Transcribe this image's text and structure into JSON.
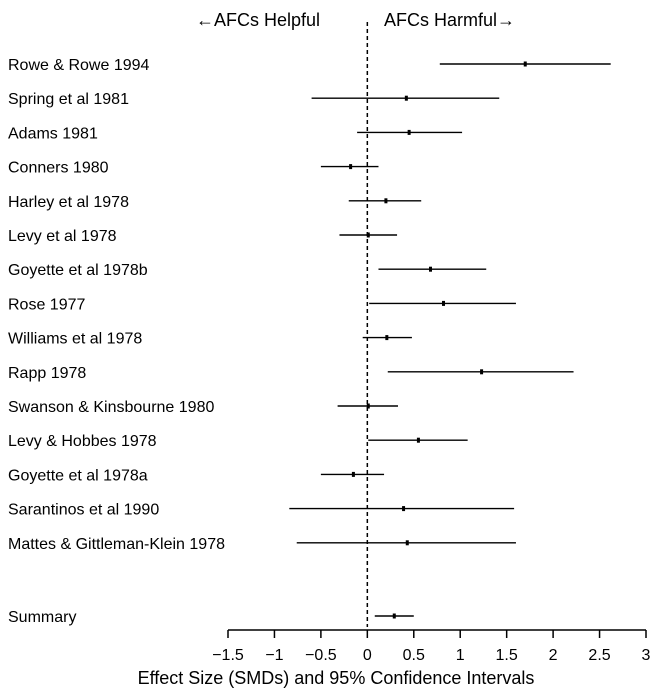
{
  "chart_data": {
    "type": "forest",
    "direction_labels": {
      "helpful": "←AFCs Helpful",
      "harmful": "AFCs Harmful→"
    },
    "xlabel": "Effect Size (SMDs) and 95% Confidence Intervals",
    "xlim": [
      -1.5,
      3
    ],
    "xticks": [
      -1.5,
      -1,
      -0.5,
      0,
      0.5,
      1,
      1.5,
      2,
      2.5,
      3
    ],
    "xtick_labels": [
      "−1.5",
      "−1",
      "−0.5",
      "0",
      "0.5",
      "1",
      "1.5",
      "2",
      "2.5",
      "3"
    ],
    "reference_line": 0,
    "studies": [
      {
        "label": "Rowe & Rowe 1994",
        "est": 1.7,
        "lo": 0.78,
        "hi": 2.62
      },
      {
        "label": "Spring et al 1981",
        "est": 0.42,
        "lo": -0.6,
        "hi": 1.42
      },
      {
        "label": "Adams 1981",
        "est": 0.45,
        "lo": -0.11,
        "hi": 1.02
      },
      {
        "label": "Conners 1980",
        "est": -0.18,
        "lo": -0.5,
        "hi": 0.12
      },
      {
        "label": "Harley et al 1978",
        "est": 0.2,
        "lo": -0.2,
        "hi": 0.58
      },
      {
        "label": "Levy et al 1978",
        "est": 0.01,
        "lo": -0.3,
        "hi": 0.32
      },
      {
        "label": "Goyette et al 1978b",
        "est": 0.68,
        "lo": 0.12,
        "hi": 1.28
      },
      {
        "label": "Rose 1977",
        "est": 0.82,
        "lo": 0.02,
        "hi": 1.6
      },
      {
        "label": "Williams et al 1978",
        "est": 0.21,
        "lo": -0.05,
        "hi": 0.48
      },
      {
        "label": "Rapp 1978",
        "est": 1.23,
        "lo": 0.22,
        "hi": 2.22
      },
      {
        "label": "Swanson & Kinsbourne 1980",
        "est": 0.01,
        "lo": -0.32,
        "hi": 0.33
      },
      {
        "label": "Levy & Hobbes 1978",
        "est": 0.55,
        "lo": 0.01,
        "hi": 1.08
      },
      {
        "label": "Goyette et al 1978a",
        "est": -0.15,
        "lo": -0.5,
        "hi": 0.18
      },
      {
        "label": "Sarantinos et al 1990",
        "est": 0.39,
        "lo": -0.84,
        "hi": 1.58
      },
      {
        "label": "Mattes & Gittleman-Klein 1978",
        "est": 0.43,
        "lo": -0.76,
        "hi": 1.6
      }
    ],
    "summary": {
      "label": "Summary",
      "est": 0.29,
      "lo": 0.08,
      "hi": 0.5
    },
    "grid": false
  }
}
